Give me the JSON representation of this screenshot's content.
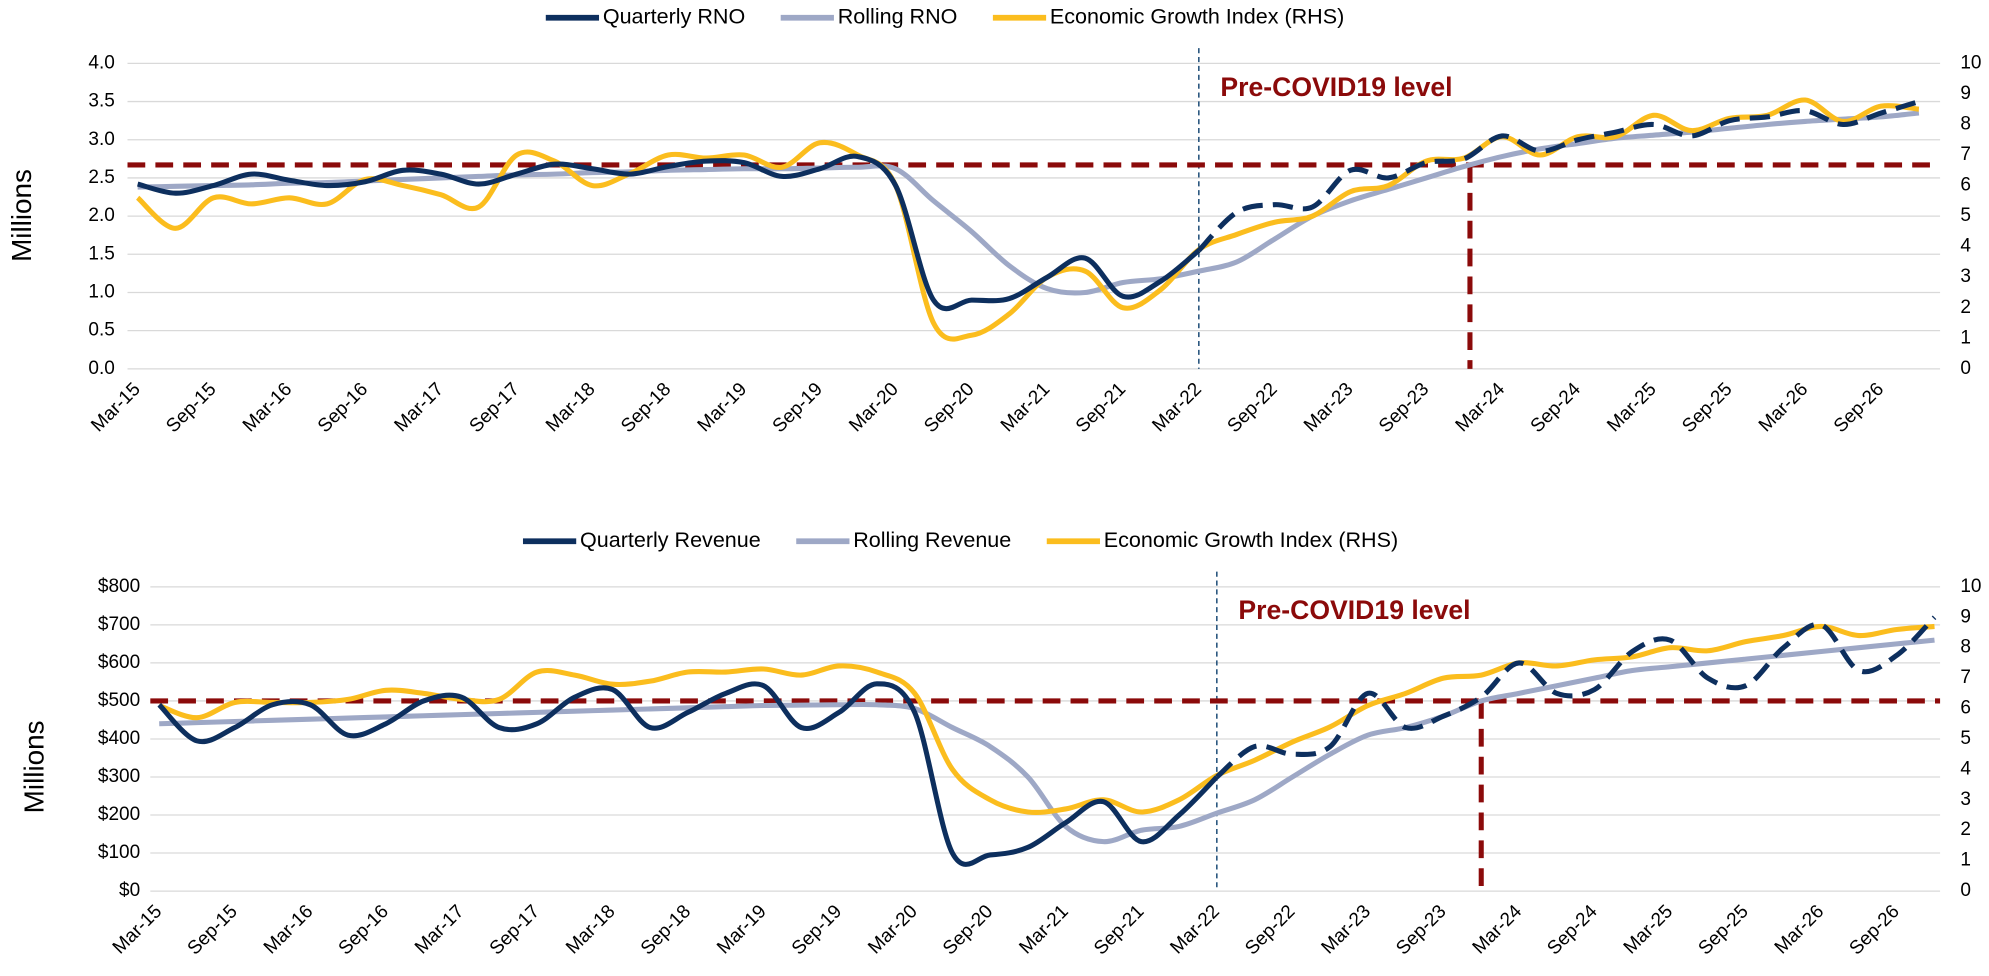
{
  "chart_data": [
    {
      "type": "line",
      "categories": [
        "Mar-15",
        null,
        "Sep-15",
        null,
        "Mar-16",
        null,
        "Sep-16",
        null,
        "Mar-17",
        null,
        "Sep-17",
        null,
        "Mar-18",
        null,
        "Sep-18",
        null,
        "Mar-19",
        null,
        "Sep-19",
        null,
        "Mar-20",
        null,
        "Sep-20",
        null,
        "Mar-21",
        null,
        "Sep-21",
        null,
        "Mar-22",
        null,
        "Sep-22",
        null,
        "Mar-23",
        null,
        "Sep-23",
        null,
        "Mar-24",
        null,
        "Sep-24",
        null,
        "Mar-25",
        null,
        "Sep-25",
        null,
        "Mar-26",
        null,
        "Sep-26",
        null
      ],
      "series": [
        {
          "name": "Quarterly RNO",
          "color": "#0d2f5e",
          "values": [
            2.42,
            2.3,
            2.4,
            2.55,
            2.47,
            2.4,
            2.45,
            2.6,
            2.55,
            2.42,
            2.55,
            2.68,
            2.62,
            2.55,
            2.65,
            2.72,
            2.7,
            2.52,
            2.62,
            2.78,
            2.4,
            0.9,
            0.9,
            0.92,
            1.2,
            1.45,
            0.95,
            1.15,
            1.55,
            2.05,
            2.15,
            2.12,
            2.6,
            2.5,
            2.7,
            2.75,
            3.05,
            2.85,
            3.0,
            3.1,
            3.2,
            3.05,
            3.25,
            3.3,
            3.38,
            3.2,
            3.35,
            3.5
          ]
        },
        {
          "name": "Rolling RNO",
          "color": "#9ea8c6",
          "values": [
            2.38,
            2.39,
            2.4,
            2.41,
            2.43,
            2.44,
            2.46,
            2.48,
            2.5,
            2.52,
            2.54,
            2.55,
            2.57,
            2.58,
            2.6,
            2.61,
            2.62,
            2.62,
            2.63,
            2.64,
            2.62,
            2.2,
            1.8,
            1.35,
            1.05,
            1.0,
            1.13,
            1.18,
            1.28,
            1.4,
            1.7,
            2.0,
            2.2,
            2.35,
            2.5,
            2.65,
            2.78,
            2.88,
            2.95,
            3.02,
            3.06,
            3.1,
            3.15,
            3.2,
            3.24,
            3.27,
            3.3,
            3.35
          ]
        },
        {
          "name": "Economic Growth Index (RHS)",
          "color": "#fbbd1e",
          "axis": "y2",
          "values": [
            5.6,
            4.6,
            5.6,
            5.4,
            5.6,
            5.4,
            6.2,
            6.0,
            5.7,
            5.3,
            7.0,
            6.8,
            6.0,
            6.4,
            7.0,
            6.9,
            7.0,
            6.6,
            7.4,
            7.0,
            6.0,
            1.5,
            1.1,
            1.8,
            3.0,
            3.2,
            2.0,
            2.6,
            3.9,
            4.4,
            4.8,
            5.0,
            5.8,
            6.0,
            6.8,
            6.9,
            7.6,
            7.0,
            7.6,
            7.6,
            8.3,
            7.8,
            8.2,
            8.3,
            8.8,
            8.1,
            8.6,
            8.5
          ]
        }
      ],
      "ylabel": "Millions",
      "ylim": [
        0,
        4
      ],
      "yticks": [
        {
          "value": 0,
          "label": "0.0"
        },
        {
          "value": 0.5,
          "label": "0.5"
        },
        {
          "value": 1,
          "label": "1.0"
        },
        {
          "value": 1.5,
          "label": "1.5"
        },
        {
          "value": 2,
          "label": "2.0"
        },
        {
          "value": 2.5,
          "label": "2.5"
        },
        {
          "value": 3,
          "label": "3.0"
        },
        {
          "value": 3.5,
          "label": "3.5"
        },
        {
          "value": 4,
          "label": "4.0"
        }
      ],
      "y2lim": [
        0,
        10
      ],
      "y2ticks": [
        0,
        1,
        2,
        3,
        4,
        5,
        6,
        7,
        8,
        9,
        10
      ],
      "grid": true,
      "legend": "top",
      "forecast_start": "Mar-22",
      "reference": {
        "label": "Pre-COVID19 level",
        "value": 2.67,
        "color": "#8b0a0a"
      }
    },
    {
      "type": "line",
      "categories": [
        "Mar-15",
        null,
        "Sep-15",
        null,
        "Mar-16",
        null,
        "Sep-16",
        null,
        "Mar-17",
        null,
        "Sep-17",
        null,
        "Mar-18",
        null,
        "Sep-18",
        null,
        "Mar-19",
        null,
        "Sep-19",
        null,
        "Mar-20",
        null,
        "Sep-20",
        null,
        "Mar-21",
        null,
        "Sep-21",
        null,
        "Mar-22",
        null,
        "Sep-22",
        null,
        "Mar-23",
        null,
        "Sep-23",
        null,
        "Mar-24",
        null,
        "Sep-24",
        null,
        "Mar-25",
        null,
        "Sep-25",
        null,
        "Mar-26",
        null,
        "Sep-26",
        null
      ],
      "series": [
        {
          "name": "Quarterly Revenue",
          "color": "#0d2f5e",
          "values": [
            490,
            395,
            430,
            490,
            490,
            410,
            440,
            500,
            510,
            430,
            440,
            510,
            530,
            430,
            470,
            520,
            540,
            430,
            470,
            545,
            470,
            100,
            95,
            115,
            180,
            235,
            130,
            200,
            300,
            380,
            360,
            380,
            520,
            430,
            460,
            510,
            600,
            520,
            530,
            630,
            660,
            560,
            540,
            640,
            700,
            580,
            620,
            720
          ]
        },
        {
          "name": "Rolling Revenue",
          "color": "#9ea8c6",
          "values": [
            440,
            443,
            446,
            449,
            452,
            455,
            458,
            461,
            464,
            467,
            470,
            473,
            476,
            479,
            482,
            485,
            488,
            489,
            490,
            490,
            480,
            430,
            380,
            300,
            170,
            130,
            160,
            170,
            205,
            240,
            300,
            360,
            410,
            430,
            460,
            500,
            520,
            540,
            560,
            580,
            590,
            600,
            610,
            620,
            630,
            640,
            650,
            660
          ]
        },
        {
          "name": "Economic Growth Index (RHS)",
          "color": "#fbbd1e",
          "axis": "y2",
          "values": [
            6.1,
            5.7,
            6.2,
            6.2,
            6.2,
            6.3,
            6.6,
            6.5,
            6.3,
            6.3,
            7.2,
            7.1,
            6.8,
            6.9,
            7.2,
            7.2,
            7.3,
            7.1,
            7.4,
            7.2,
            6.5,
            4.0,
            3.0,
            2.6,
            2.7,
            3.0,
            2.6,
            3.0,
            3.8,
            4.3,
            4.9,
            5.4,
            6.1,
            6.5,
            7.0,
            7.1,
            7.5,
            7.4,
            7.6,
            7.7,
            8.0,
            7.9,
            8.2,
            8.4,
            8.7,
            8.4,
            8.6,
            8.7
          ]
        }
      ],
      "ylabel": "Millions",
      "ylim": [
        0,
        800
      ],
      "yticks": [
        {
          "value": 0,
          "label": "$0"
        },
        {
          "value": 100,
          "label": "$100"
        },
        {
          "value": 200,
          "label": "$200"
        },
        {
          "value": 300,
          "label": "$300"
        },
        {
          "value": 400,
          "label": "$400"
        },
        {
          "value": 500,
          "label": "$500"
        },
        {
          "value": 600,
          "label": "$600"
        },
        {
          "value": 700,
          "label": "$700"
        },
        {
          "value": 800,
          "label": "$800"
        }
      ],
      "y2lim": [
        0,
        10
      ],
      "y2ticks": [
        0,
        1,
        2,
        3,
        4,
        5,
        6,
        7,
        8,
        9,
        10
      ],
      "grid": true,
      "legend": "top",
      "forecast_start": "Mar-22",
      "reference": {
        "label": "Pre-COVID19 level",
        "value": 500,
        "color": "#8b0a0a"
      }
    }
  ]
}
